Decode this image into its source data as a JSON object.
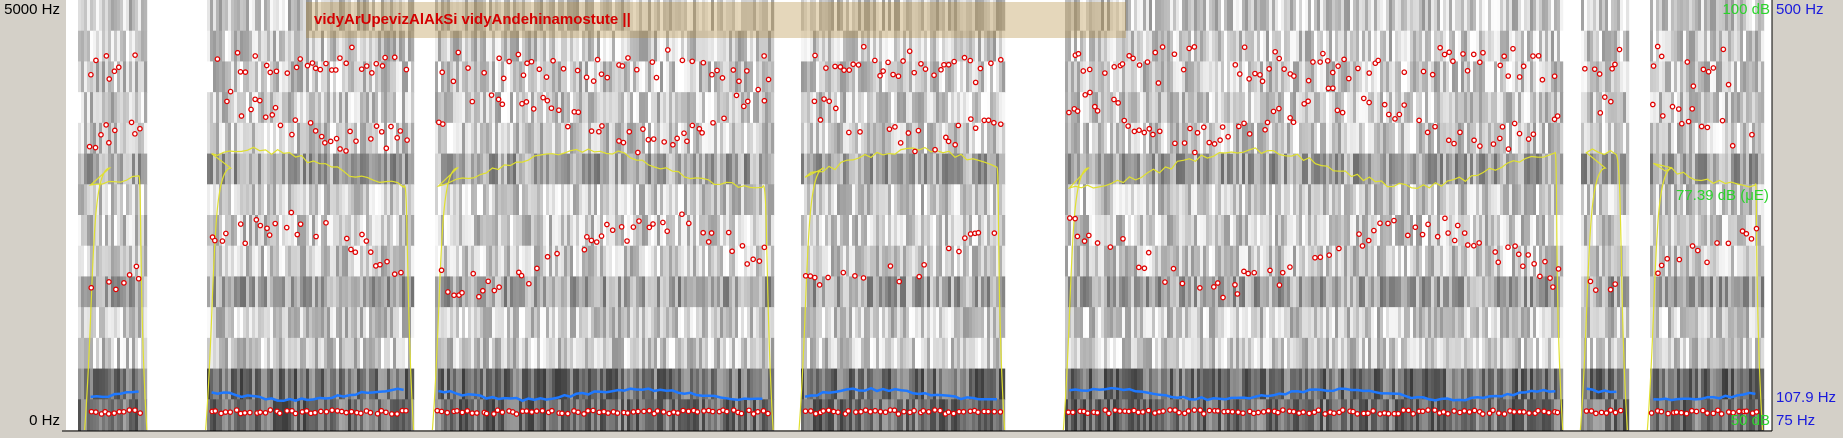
{
  "left_axis": {
    "top": "5000 Hz",
    "bottom": "0 Hz"
  },
  "title": "vidyArUpevizAlAkSi vidyAndehinamostute ||",
  "right_axis": {
    "intensity_top": "100 dB",
    "pitch_top": "500 Hz",
    "intensity_mean": "77.39 dB (μE)",
    "pitch_mean": "107.9 Hz",
    "pitch_bottom": "75 Hz",
    "intensity_bottom": "50 dB"
  }
}
